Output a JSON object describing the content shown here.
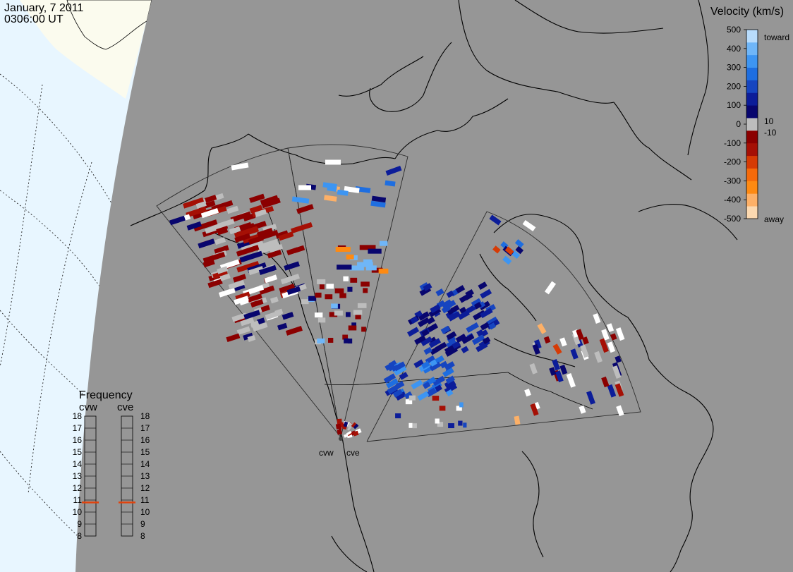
{
  "header": {
    "date": "January, 7 2011",
    "time": "0306:00 UT"
  },
  "colorbar": {
    "title": "Velocity (km/s)",
    "ticks": [
      "500",
      "400",
      "300",
      "200",
      "100",
      "0",
      "-100",
      "-200",
      "-300",
      "-400",
      "-500"
    ],
    "label_toward": "toward",
    "label_away": "away",
    "label_pos": "10",
    "label_neg": "-10",
    "colors": [
      "#fcd9b0",
      "#fdb067",
      "#fe8a12",
      "#f56a0a",
      "#d63b05",
      "#a51005",
      "#8b0000",
      "#bdbdbd",
      "#08066e",
      "#0c1d99",
      "#1645c0",
      "#1e6ee0",
      "#3d95f2",
      "#6fb6f8",
      "#b8dcfc"
    ]
  },
  "frequency": {
    "title": "Frequency",
    "radars": [
      "cvw",
      "cve"
    ],
    "levels": [
      "18",
      "17",
      "16",
      "15",
      "14",
      "13",
      "12",
      "11",
      "10",
      "9",
      "8"
    ],
    "marker_value": 10.8,
    "marker_color": "#e0440e"
  },
  "map": {
    "radar_labels": [
      "cvw",
      "cve"
    ],
    "land_color": "#969696",
    "ocean_color": "#e8f6ff",
    "ice_color": "#fbfbee"
  }
}
